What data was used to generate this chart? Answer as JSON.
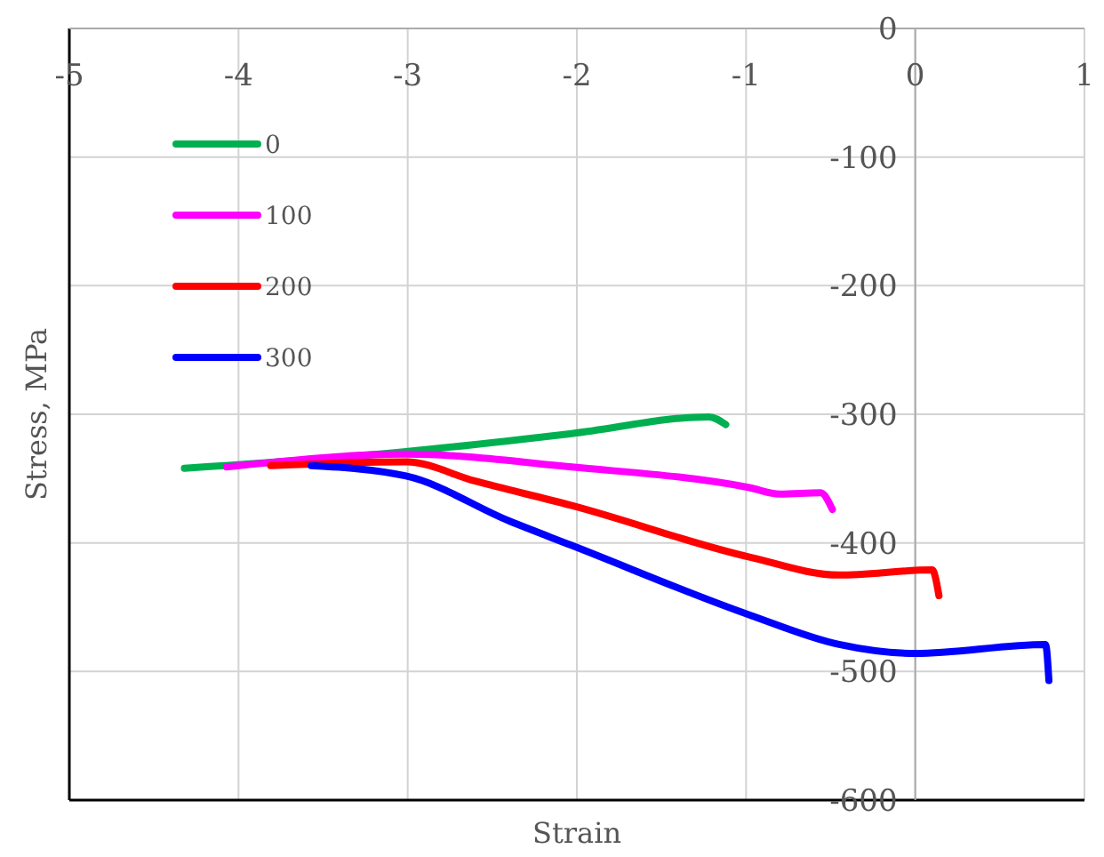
{
  "chart_data": {
    "type": "line",
    "xlabel": "Strain",
    "ylabel": "Stress, MPa",
    "xlim": [
      -5,
      1
    ],
    "ylim": [
      -600,
      0
    ],
    "xticks": [
      -5,
      -4,
      -3,
      -2,
      -1,
      0,
      1
    ],
    "yticks": [
      0,
      -100,
      -200,
      -300,
      -400,
      -500,
      -600
    ],
    "grid": true,
    "legend": "top left",
    "line_style": "solid",
    "marker": "none",
    "series": [
      {
        "name": "0",
        "color": "#00b050",
        "x": [
          -4.32,
          -3.01,
          -2.03,
          -1.22,
          -1.12
        ],
        "values": [
          -342,
          -329,
          -315,
          -302,
          -308
        ]
      },
      {
        "name": "100",
        "color": "#ff00ff",
        "x": [
          -4.07,
          -3.01,
          -2.03,
          -0.98,
          -0.8,
          -0.56,
          -0.49
        ],
        "values": [
          -341,
          -331,
          -341,
          -357,
          -362,
          -361,
          -374
        ]
      },
      {
        "name": "200",
        "color": "#ff0000",
        "x": [
          -3.81,
          -3.01,
          -2.6,
          -2.03,
          -0.98,
          -0.45,
          0.1,
          0.14
        ],
        "values": [
          -340,
          -337,
          -352,
          -371,
          -411,
          -425,
          -421,
          -441
        ]
      },
      {
        "name": "300",
        "color": "#0000ff",
        "x": [
          -3.57,
          -3.01,
          -2.4,
          -2.03,
          -0.98,
          -0.45,
          0,
          0.77,
          0.79
        ],
        "values": [
          -340,
          -348,
          -383,
          -402,
          -456,
          -479,
          -486,
          -479,
          -507
        ]
      }
    ]
  }
}
